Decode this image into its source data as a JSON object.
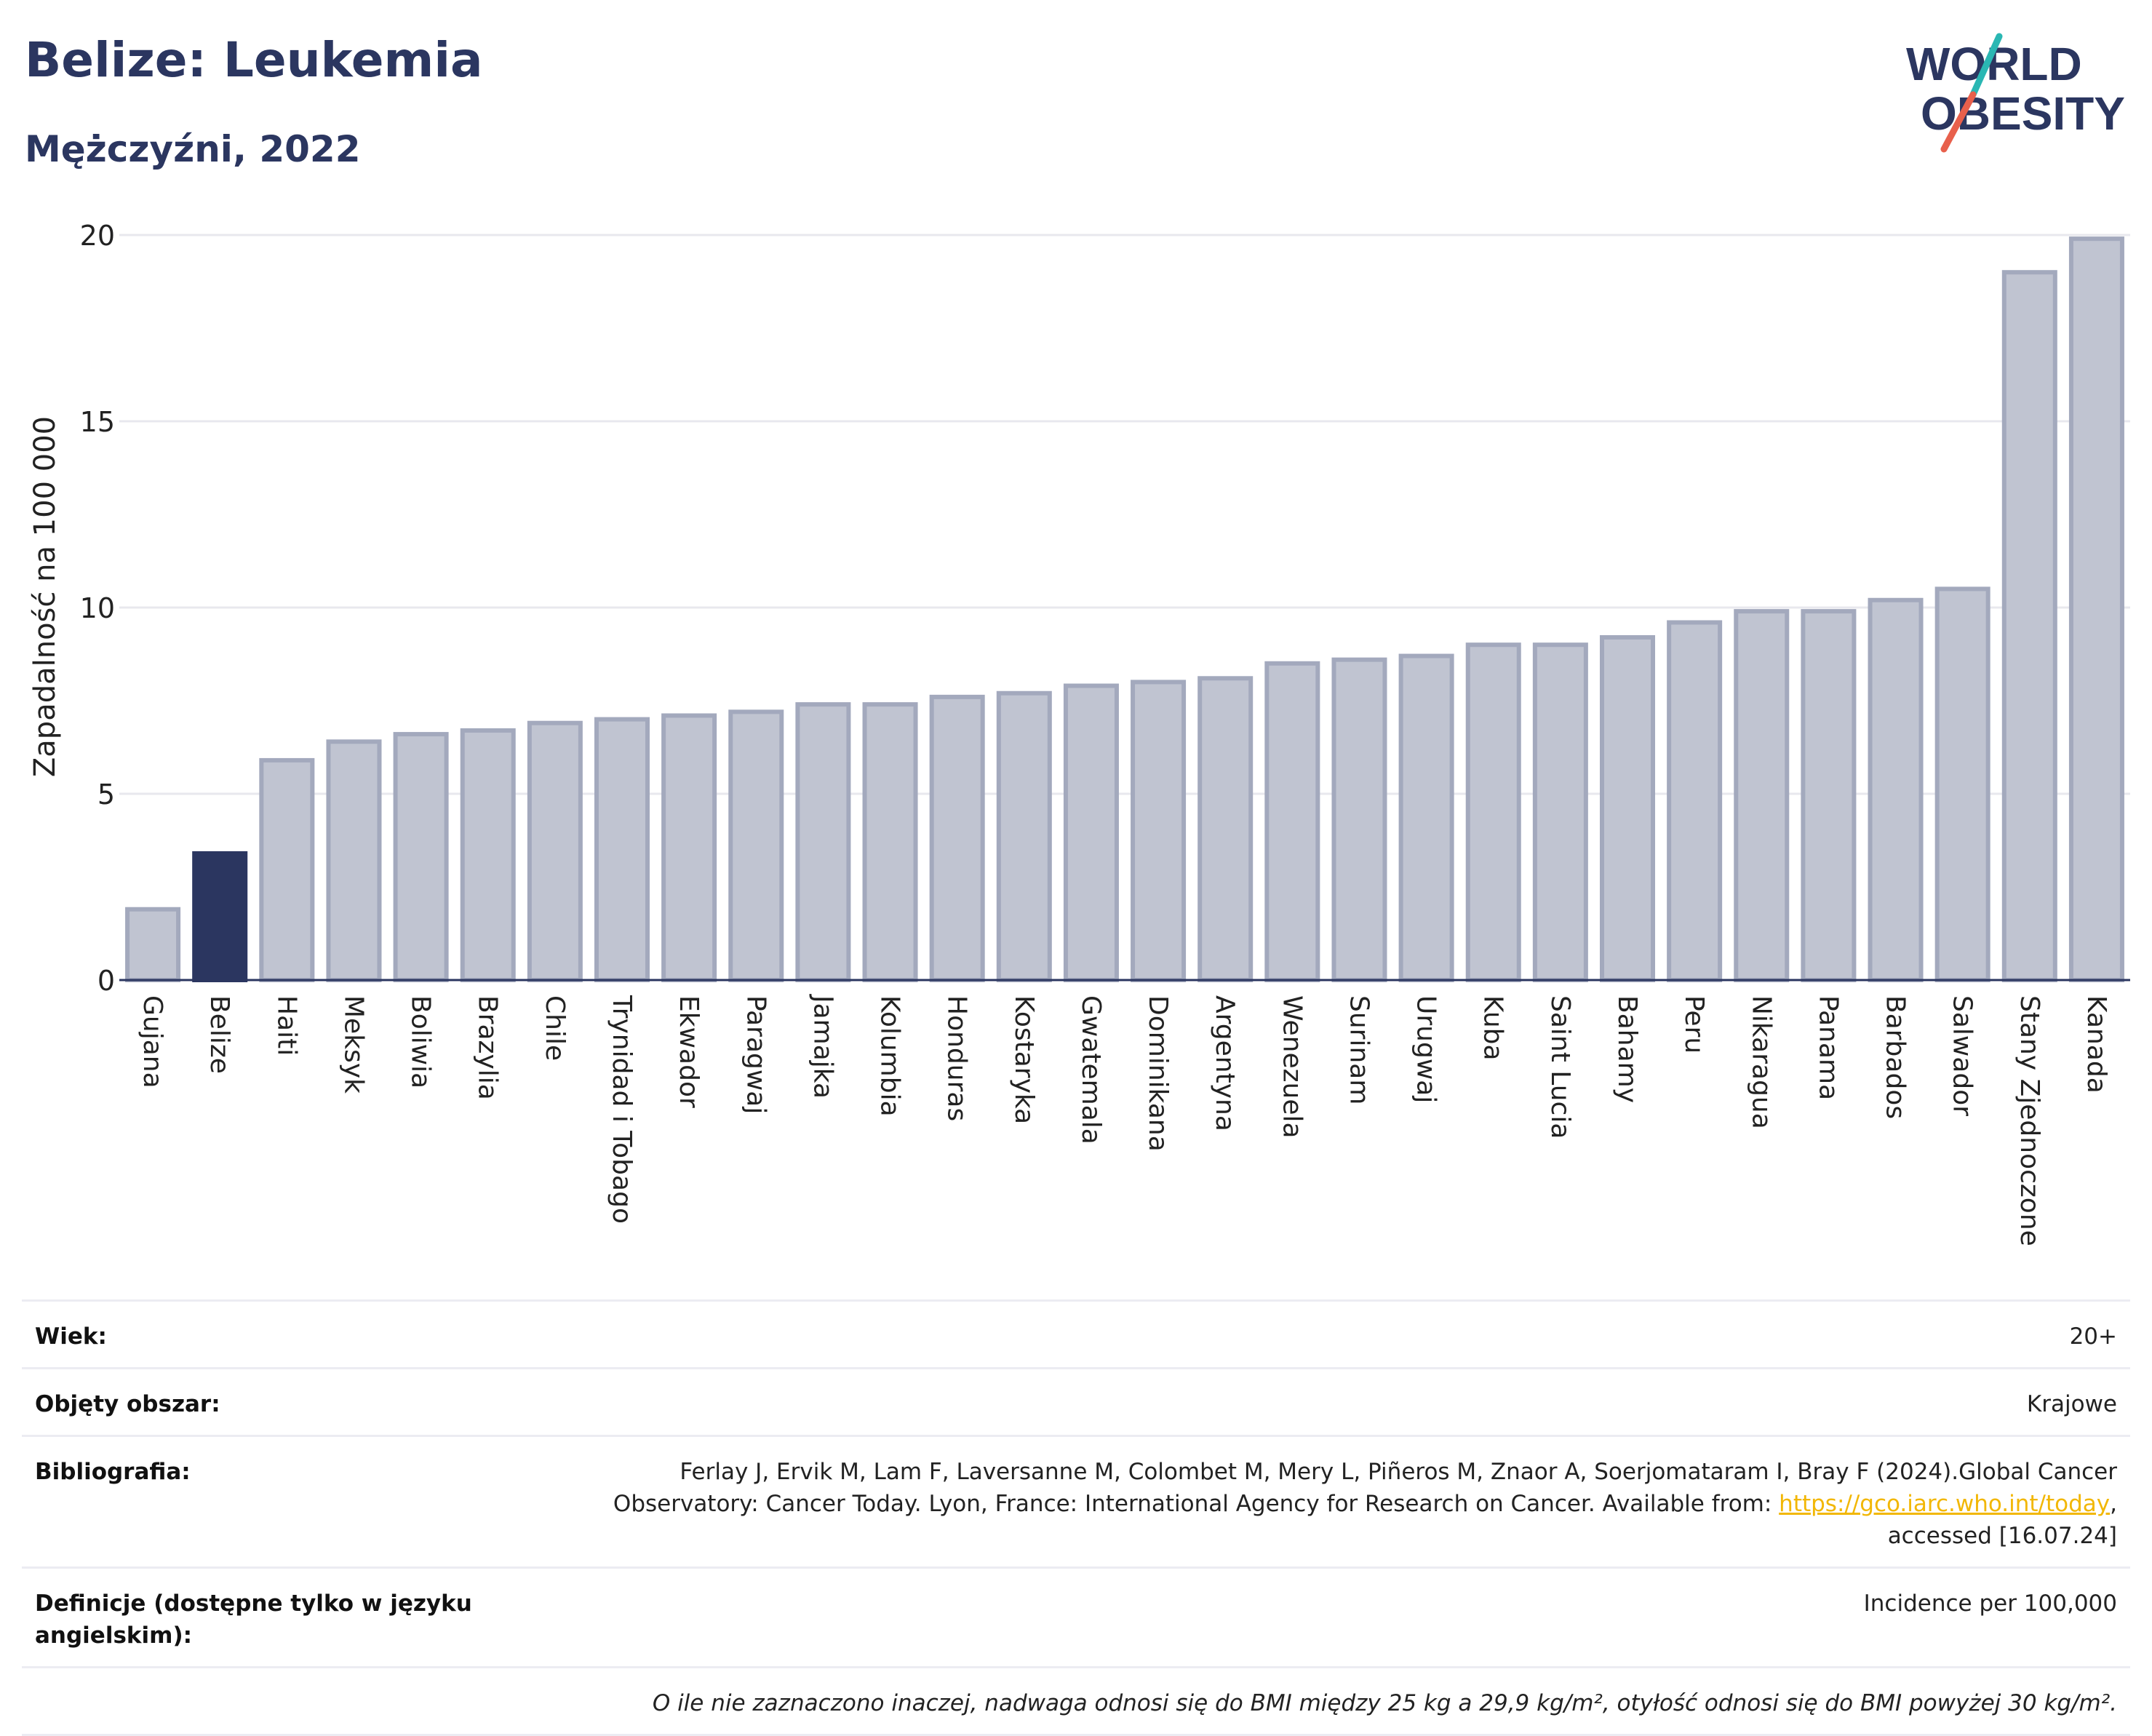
{
  "header": {
    "title": "Belize: Leukemia",
    "subtitle": "Mężczyźni, 2022"
  },
  "logo": {
    "line1": "WORLD",
    "line2": "OBESITY"
  },
  "colors": {
    "bar": "#c0c4d1",
    "bar_stroke": "#a3a9bd",
    "highlight": "#2b3660",
    "grid": "#e8e8ee",
    "axis": "#2b3660"
  },
  "chart_data": {
    "type": "bar",
    "ylabel": "Zapadalność na 100 000",
    "ylim": [
      0,
      20
    ],
    "yticks": [
      0,
      5,
      10,
      15,
      20
    ],
    "grid": true,
    "highlight": "Belize",
    "categories": [
      "Gujana",
      "Belize",
      "Haiti",
      "Meksyk",
      "Boliwia",
      "Brazylia",
      "Chile",
      "Trynidad i Tobago",
      "Ekwador",
      "Paragwaj",
      "Jamajka",
      "Kolumbia",
      "Honduras",
      "Kostaryka",
      "Gwatemala",
      "Dominikana",
      "Argentyna",
      "Wenezuela",
      "Surinam",
      "Urugwaj",
      "Kuba",
      "Saint Lucia",
      "Bahamy",
      "Peru",
      "Nikaragua",
      "Panama",
      "Barbados",
      "Salwador",
      "Stany Zjednoczone",
      "Kanada"
    ],
    "values": [
      1.9,
      3.4,
      5.9,
      6.4,
      6.6,
      6.7,
      6.9,
      7.0,
      7.1,
      7.2,
      7.4,
      7.4,
      7.6,
      7.7,
      7.9,
      8.0,
      8.1,
      8.5,
      8.6,
      8.7,
      9.0,
      9.0,
      9.2,
      9.6,
      9.9,
      9.9,
      10.2,
      10.5,
      19.0,
      19.9
    ]
  },
  "info": {
    "age_label": "Wiek:",
    "age_value": "20+",
    "area_label": "Objęty obszar:",
    "area_value": "Krajowe",
    "bib_label": "Bibliografia:",
    "bib_text": "Ferlay J, Ervik M, Lam F, Laversanne M, Colombet M, Mery L, Piñeros M, Znaor A, Soerjomataram I, Bray F (2024).Global Cancer Observatory: Cancer Today. Lyon, France: International Agency for Research on Cancer. Available from:",
    "bib_link": "https://gco.iarc.who.int/today",
    "bib_after": ", accessed [16.07.24]",
    "def_label": "Definicje (dostępne tylko w języku angielskim):",
    "def_value": "Incidence per 100,000",
    "note": "O ile nie zaznaczono inaczej, nadwaga odnosi się do BMI między 25 kg a 29,9 kg/m², otyłość odnosi się do BMI powyżej 30 kg/m²."
  }
}
